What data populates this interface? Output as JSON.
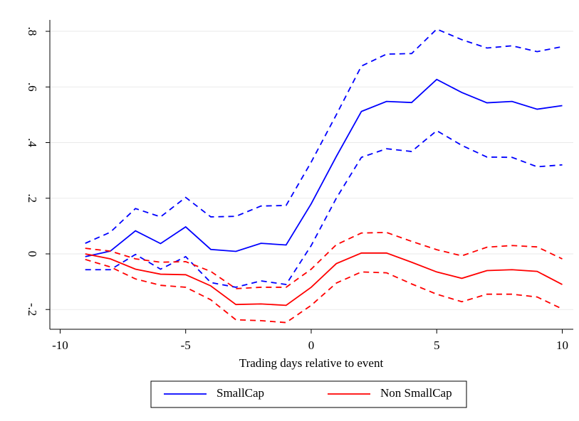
{
  "chart_data": {
    "type": "line",
    "x_label": "Trading days relative to event",
    "x": [
      -9,
      -8,
      -7,
      -6,
      -5,
      -4,
      -3,
      -2,
      -1,
      0,
      1,
      2,
      3,
      4,
      5,
      6,
      7,
      8,
      9,
      10
    ],
    "series": [
      {
        "name": "SmallCap",
        "color": "#0000ff",
        "values": [
          -0.01,
          0.01,
          0.083,
          0.037,
          0.097,
          0.016,
          0.009,
          0.038,
          0.032,
          0.18,
          0.35,
          0.512,
          0.548,
          0.544,
          0.627,
          0.58,
          0.543,
          0.548,
          0.52,
          0.533
        ],
        "ci_upper": [
          0.038,
          0.078,
          0.163,
          0.133,
          0.203,
          0.133,
          0.135,
          0.172,
          0.174,
          0.33,
          0.5,
          0.675,
          0.718,
          0.72,
          0.808,
          0.77,
          0.74,
          0.748,
          0.727,
          0.745
        ],
        "ci_lower": [
          -0.057,
          -0.057,
          -0.002,
          -0.055,
          -0.01,
          -0.103,
          -0.12,
          -0.097,
          -0.11,
          0.03,
          0.2,
          0.347,
          0.378,
          0.368,
          0.443,
          0.39,
          0.348,
          0.347,
          0.313,
          0.32
        ]
      },
      {
        "name": "Non SmallCap",
        "color": "#ff0000",
        "values": [
          0.0,
          -0.018,
          -0.055,
          -0.073,
          -0.075,
          -0.115,
          -0.182,
          -0.18,
          -0.185,
          -0.12,
          -0.035,
          0.003,
          0.003,
          -0.03,
          -0.065,
          -0.088,
          -0.06,
          -0.057,
          -0.063,
          -0.11
        ],
        "ci_upper": [
          0.02,
          0.01,
          -0.018,
          -0.03,
          -0.028,
          -0.063,
          -0.125,
          -0.12,
          -0.12,
          -0.055,
          0.033,
          0.075,
          0.077,
          0.045,
          0.015,
          -0.007,
          0.024,
          0.03,
          0.025,
          -0.018
        ],
        "ci_lower": [
          -0.02,
          -0.047,
          -0.09,
          -0.113,
          -0.12,
          -0.165,
          -0.237,
          -0.24,
          -0.247,
          -0.185,
          -0.105,
          -0.065,
          -0.068,
          -0.108,
          -0.145,
          -0.172,
          -0.145,
          -0.145,
          -0.155,
          -0.198
        ]
      }
    ],
    "ci_style": "dashed",
    "xlim": [
      -10.41,
      10.44
    ],
    "ylim": [
      -0.271,
      0.841
    ],
    "xticks": [
      -10,
      -5,
      0,
      5,
      10
    ],
    "yticks": [
      {
        "value": -0.2,
        "label": "-.2"
      },
      0,
      {
        "value": 0.2,
        "label": ".2"
      },
      {
        "value": 0.4,
        "label": ".4"
      },
      {
        "value": 0.6,
        "label": ".6"
      },
      {
        "value": 0.8,
        "label": ".8"
      }
    ],
    "grid": true,
    "legend": "bottom"
  }
}
